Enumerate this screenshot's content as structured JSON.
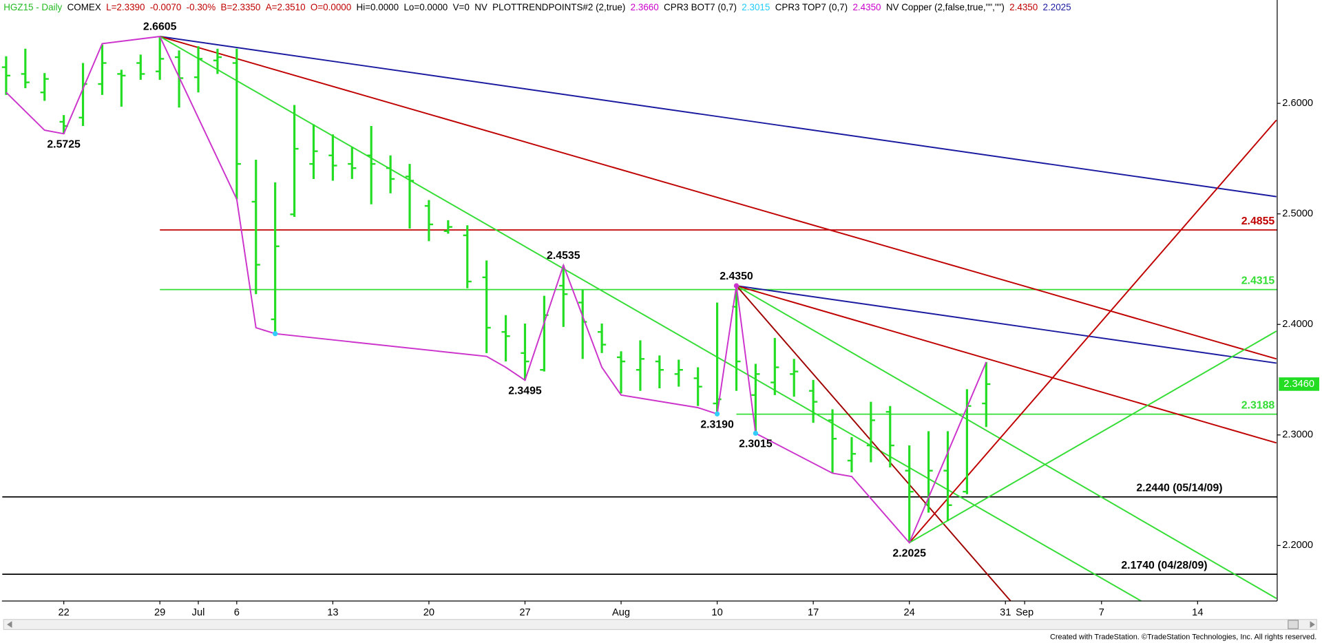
{
  "chart_data": {
    "type": "ohlc",
    "header": [
      {
        "text": "HGZ15 - Daily",
        "color": "#22bb22"
      },
      {
        "text": "COMEX",
        "color": "#000000"
      },
      {
        "text": "L=2.3390",
        "color": "#c00000"
      },
      {
        "text": "-0.0070",
        "color": "#c00000"
      },
      {
        "text": "-0.30%",
        "color": "#c00000"
      },
      {
        "text": "B=2.3350",
        "color": "#c00000"
      },
      {
        "text": "A=2.3510",
        "color": "#c00000"
      },
      {
        "text": "O=0.0000",
        "color": "#c00000"
      },
      {
        "text": "Hi=0.0000",
        "color": "#000000"
      },
      {
        "text": "Lo=0.0000",
        "color": "#000000"
      },
      {
        "text": "V=0",
        "color": "#000000"
      },
      {
        "text": "NV",
        "color": "#000000"
      },
      {
        "text": "PLOTTRENDPOINTS#2 (2,true)",
        "color": "#000000"
      },
      {
        "text": "2.3660",
        "color": "#cc00cc"
      },
      {
        "text": "CPR3 BOT7 (0,7)",
        "color": "#000000"
      },
      {
        "text": "2.3015",
        "color": "#22ccff"
      },
      {
        "text": "CPR3 TOP7 (0,7)",
        "color": "#000000"
      },
      {
        "text": "2.4350",
        "color": "#cc00cc"
      },
      {
        "text": "NV Copper (2,false,true,\"\",\"\")",
        "color": "#000000"
      },
      {
        "text": "2.4350",
        "color": "#c00000"
      },
      {
        "text": "2.2025",
        "color": "#1a1aa0"
      }
    ],
    "categories": [
      null,
      null,
      null,
      "22",
      null,
      null,
      null,
      null,
      "29",
      null,
      "Jul",
      null,
      "6",
      null,
      null,
      null,
      null,
      "13",
      null,
      null,
      null,
      null,
      "20",
      null,
      null,
      null,
      null,
      "27",
      null,
      null,
      null,
      null,
      "Aug",
      null,
      null,
      null,
      null,
      "10",
      null,
      null,
      null,
      null,
      "17",
      null,
      null,
      null,
      null,
      "24",
      null,
      null,
      null,
      null,
      "31",
      "Sep",
      null,
      null,
      null,
      "7",
      null,
      null,
      null,
      null,
      "14",
      null,
      null,
      null,
      null
    ],
    "color": "#22dd22",
    "open": [
      2.6327,
      2.6266,
      2.6099,
      2.5833,
      2.5871,
      2.6175,
      2.6266,
      2.6365,
      2.6289,
      2.6418,
      2.6236,
      2.6388,
      2.6365,
      2.511,
      2.4046,
      2.4996,
      2.5452,
      2.5529,
      2.5452,
      2.5529,
      2.5414,
      2.5338,
      2.5072,
      2.4844,
      2.4806,
      2.4426,
      2.3932,
      2.3741,
      2.3589,
      2.435,
      2.4198,
      2.3932,
      2.3703,
      2.3589,
      2.3665,
      2.3551,
      2.3513,
      2.3285,
      2.416,
      2.3361,
      2.3475,
      2.3551,
      2.3399,
      2.3133,
      2.2768,
      2.2905,
      2.3209,
      2.2677,
      2.2373,
      2.2677,
      2.2487,
      2.3285,
      null,
      null,
      null,
      null,
      null,
      null,
      null,
      null,
      null,
      null,
      null,
      null,
      null,
      null,
      null
    ],
    "high": [
      2.6426,
      2.6494,
      2.6274,
      2.5894,
      2.6365,
      2.6532,
      2.6304,
      2.6441,
      2.6605,
      2.6479,
      2.6517,
      2.6494,
      2.6494,
      2.549,
      2.5285,
      2.5985,
      2.581,
      2.5719,
      2.5605,
      2.5795,
      2.5529,
      2.5452,
      2.5125,
      2.4943,
      2.4897,
      2.4578,
      2.4084,
      2.4008,
      2.4259,
      2.4535,
      2.4312,
      2.4008,
      2.3757,
      2.3856,
      2.3719,
      2.3681,
      2.3612,
      2.4198,
      2.435,
      2.3643,
      2.3878,
      2.3688,
      2.3498,
      2.3232,
      2.2981,
      2.33,
      2.3262,
      2.2905,
      2.3034,
      2.3034,
      2.3414,
      2.366,
      null,
      null,
      null,
      null,
      null,
      null,
      null,
      null,
      null,
      null,
      null,
      null,
      null,
      null,
      null
    ],
    "low": [
      2.6076,
      2.6137,
      2.6023,
      2.5725,
      2.5795,
      2.6076,
      2.597,
      2.6213,
      2.6213,
      2.5962,
      2.6099,
      2.6266,
      2.5133,
      2.4274,
      2.3916,
      2.4973,
      2.5316,
      2.53,
      2.5316,
      2.5087,
      2.5186,
      2.4867,
      2.4753,
      2.4821,
      2.4327,
      2.3741,
      2.3665,
      2.3495,
      2.3574,
      2.3977,
      2.3688,
      2.3741,
      2.3376,
      2.3399,
      2.3422,
      2.3437,
      2.3262,
      2.319,
      2.3399,
      2.3015,
      2.3361,
      2.3346,
      2.311,
      2.2654,
      2.2662,
      2.2753,
      2.2707,
      2.2025,
      2.2297,
      2.222,
      2.2464,
      2.3072,
      null,
      null,
      null,
      null,
      null,
      null,
      null,
      null,
      null,
      null,
      null,
      null,
      null,
      null,
      null
    ],
    "close": [
      2.6251,
      2.619,
      2.6221,
      2.5795,
      2.6175,
      2.6365,
      2.6251,
      2.6266,
      2.6403,
      2.6228,
      2.6403,
      2.6418,
      2.5452,
      2.454,
      2.4707,
      2.5589,
      2.5567,
      2.5437,
      2.5414,
      2.5452,
      2.5316,
      2.53,
      2.4905,
      2.4882,
      2.4388,
      2.397,
      2.3894,
      2.3665,
      2.4084,
      2.4274,
      2.4023,
      2.3817,
      2.3665,
      2.3688,
      2.3589,
      2.3589,
      2.3437,
      2.3323,
      2.3665,
      2.3551,
      2.3612,
      2.3574,
      2.33,
      2.2966,
      2.2829,
      2.3133,
      2.2905,
      2.2487,
      2.2677,
      2.2365,
      2.3262,
      2.346,
      null,
      null,
      null,
      null,
      null,
      null,
      null,
      null,
      null,
      null,
      null,
      null,
      null,
      null,
      null
    ],
    "ylim": [
      2.1498,
      2.6935
    ],
    "yticks": [
      {
        "value": 2.2,
        "label": "2.2000"
      },
      {
        "value": 2.3,
        "label": "2.3000"
      },
      {
        "value": 2.4,
        "label": "2.4000"
      },
      {
        "value": 2.5,
        "label": "2.5000"
      },
      {
        "value": 2.6,
        "label": "2.6000"
      }
    ],
    "last_price": {
      "value": 2.346,
      "label": "2.3460",
      "color": "#22dd22"
    },
    "levels": [
      {
        "value": 2.4855,
        "label": "2.4855",
        "color": "#c00000",
        "from": 8
      },
      {
        "value": 2.4315,
        "label": "2.4315",
        "color": "#33dd33",
        "from": 8
      },
      {
        "value": 2.3188,
        "label": "2.3188",
        "color": "#33dd33",
        "from": 38
      },
      {
        "value": 2.244,
        "label": "2.2440 (05/14/09)",
        "color": "#000000",
        "from": -0.2
      },
      {
        "value": 2.174,
        "label": "2.1740 (04/28/09)",
        "color": "#000000",
        "from": -0.2
      }
    ],
    "trend_lines": [
      {
        "color": "#1a1aa0",
        "points": [
          [
            8,
            2.6605
          ],
          [
            66.1,
            2.5156
          ]
        ]
      },
      {
        "color": "#c00000",
        "points": [
          [
            8,
            2.6605
          ],
          [
            66.1,
            2.3688
          ]
        ]
      },
      {
        "color": "#33dd33",
        "points": [
          [
            8,
            2.6605
          ],
          [
            59.06,
            2.1498
          ]
        ]
      },
      {
        "color": "#1a1aa0",
        "points": [
          [
            38,
            2.435
          ],
          [
            66.1,
            2.365
          ]
        ]
      },
      {
        "color": "#c00000",
        "points": [
          [
            38,
            2.435
          ],
          [
            66.1,
            2.2928
          ]
        ]
      },
      {
        "color": "#33dd33",
        "points": [
          [
            38,
            2.435
          ],
          [
            66.1,
            2.1521
          ]
        ]
      },
      {
        "color": "#a00000",
        "points": [
          [
            38,
            2.435
          ],
          [
            52.27,
            2.1498
          ]
        ]
      },
      {
        "color": "#c00000",
        "points": [
          [
            47,
            2.2025
          ],
          [
            66.1,
            2.5848
          ]
        ]
      },
      {
        "color": "#33dd33",
        "points": [
          [
            47,
            2.2025
          ],
          [
            66.1,
            2.3939
          ]
        ]
      }
    ],
    "pivot_line": {
      "color": "#cc33cc",
      "x": [
        0,
        2,
        3,
        5,
        8,
        12,
        13,
        14,
        25,
        26,
        27,
        29,
        31,
        32,
        36,
        37,
        38,
        39,
        43,
        44,
        47,
        51
      ],
      "y": [
        2.6099,
        2.5757,
        2.5725,
        2.654,
        2.6605,
        2.5133,
        2.397,
        2.3916,
        2.3711,
        2.3612,
        2.3495,
        2.4535,
        2.3612,
        2.3361,
        2.3247,
        2.319,
        2.435,
        2.3015,
        2.2654,
        2.2624,
        2.2025,
        2.366
      ]
    },
    "markers": [
      {
        "at": [
          14,
          2.3916
        ],
        "color": "#33ccff"
      },
      {
        "at": [
          37,
          2.319
        ],
        "color": "#33ccff"
      },
      {
        "at": [
          39,
          2.3015
        ],
        "color": "#33ccff"
      },
      {
        "at": [
          38,
          2.435
        ],
        "color": "#cc33cc"
      }
    ],
    "annotations": [
      {
        "label": "2.6605",
        "at": [
          8,
          2.6605
        ],
        "pos": "above"
      },
      {
        "label": "2.5725",
        "at": [
          3,
          2.5725
        ],
        "pos": "below"
      },
      {
        "label": "2.4535",
        "at": [
          29,
          2.4535
        ],
        "pos": "above"
      },
      {
        "label": "2.3495",
        "at": [
          27,
          2.3495
        ],
        "pos": "below"
      },
      {
        "label": "2.4350",
        "at": [
          38,
          2.435
        ],
        "pos": "above"
      },
      {
        "label": "2.3190",
        "at": [
          37,
          2.319
        ],
        "pos": "below"
      },
      {
        "label": "2.3015",
        "at": [
          39,
          2.3015
        ],
        "pos": "below"
      },
      {
        "label": "2.2025",
        "at": [
          47,
          2.2025
        ],
        "pos": "below"
      }
    ],
    "footer": "Created with TradeStation. ©TradeStation Technologies, Inc. All rights reserved."
  }
}
